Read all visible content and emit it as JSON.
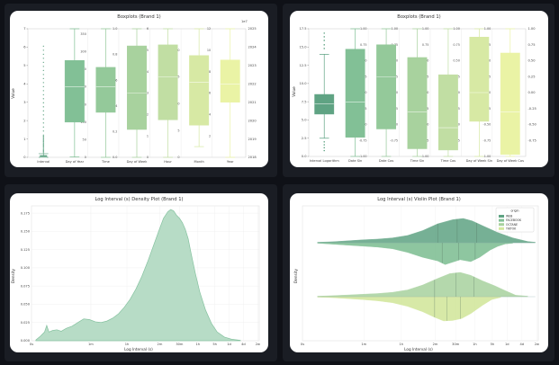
{
  "colors": {
    "page_bg": "#0f1117",
    "panel_bg": "#1a1d24",
    "card_bg": "#ffffff",
    "kde_fill": "#b7dcc6",
    "kde_line": "#86c2a0"
  },
  "chart_data": [
    {
      "id": "box1",
      "type": "box",
      "title": "Boxplots (Brand 1)",
      "ylabel": "Value",
      "left_axis": {
        "ylim": [
          0,
          7
        ],
        "ticks": [
          0,
          1,
          2,
          3,
          4,
          5,
          6,
          7
        ]
      },
      "exponent_label": "1e7",
      "right_axis": {
        "ylim": [
          2018,
          2025
        ],
        "ticks": [
          2018,
          2019,
          2020,
          2021,
          2022,
          2023,
          2024,
          2025
        ]
      },
      "categories": [
        "Interval",
        "Day of Year",
        "Time",
        "Day of Week",
        "Hour",
        "Month",
        "Year"
      ],
      "colors": [
        "#5fa383",
        "#82c096",
        "#94c99a",
        "#a8d29e",
        "#c1dea3",
        "#d7e9a4",
        "#eaf3a5"
      ],
      "boxes": [
        {
          "whisker_lo": 0,
          "q1": 0,
          "median": 0,
          "q3": 0.1,
          "whisker_hi": 0.2
        },
        {
          "whisker_lo": 1,
          "q1": 100,
          "median": 200,
          "q3": 275,
          "whisker_hi": 365
        },
        {
          "whisker_lo": 0,
          "q1": 0.35,
          "median": 0.55,
          "q3": 0.7,
          "whisker_hi": 1.0
        },
        {
          "whisker_lo": 0,
          "q1": 1.3,
          "median": 3.0,
          "q3": 5.2,
          "whisker_hi": 6.0
        },
        {
          "whisker_lo": 0,
          "q1": 7,
          "median": 15,
          "q3": 21,
          "whisker_hi": 24
        },
        {
          "whisker_lo": 1,
          "q1": 3,
          "median": 7,
          "q3": 9.5,
          "whisker_hi": 12
        },
        {
          "whisker_lo": 2018,
          "q1": 2021,
          "median": 2022,
          "q3": 2023.3,
          "whisker_hi": 2025
        }
      ],
      "inner_axes": [
        {
          "ticks": [
            0,
            50,
            100,
            150,
            200,
            250,
            300,
            350
          ],
          "lim": [
            0,
            365
          ]
        },
        {
          "ticks": [
            "0.0",
            "0.2",
            "0.4",
            "0.6",
            "0.8",
            "1.0"
          ],
          "lim": [
            0,
            1
          ]
        },
        {
          "ticks": [
            0,
            1,
            2,
            3,
            4,
            5,
            6
          ],
          "lim": [
            0,
            6
          ]
        },
        {
          "ticks": [
            0,
            5,
            10,
            15,
            20
          ],
          "lim": [
            0,
            24
          ]
        },
        {
          "ticks": [
            2,
            4,
            6,
            8,
            10,
            12
          ],
          "lim": [
            0,
            12
          ]
        }
      ]
    },
    {
      "id": "box2",
      "type": "box",
      "title": "Boxplots (Brand 1)",
      "ylabel": "Value",
      "left_axis": {
        "ylim": [
          0,
          17.5
        ],
        "ticks": [
          "0.0",
          "2.5",
          "5.0",
          "7.5",
          "10.0",
          "12.5",
          "15.0",
          "17.5"
        ]
      },
      "right_axis": {
        "ylim": [
          -1,
          1
        ],
        "ticks": [
          "-0.75",
          "-0.50",
          "-0.25",
          "0.00",
          "0.25",
          "0.50",
          "0.75",
          "1.00"
        ]
      },
      "categories": [
        "Interval Logarithm",
        "Date Sin",
        "Date Cos",
        "Time Sin",
        "Time Cos",
        "Day of Week Sin",
        "Day of Week Cos"
      ],
      "colors": [
        "#5fa383",
        "#82c096",
        "#94c99a",
        "#a8d29e",
        "#c1dea3",
        "#d7e9a4",
        "#eaf3a5"
      ],
      "boxes": [
        {
          "whisker_lo": 2.5,
          "q1": 5.8,
          "median": 7.2,
          "q3": 8.5,
          "whisker_hi": 14
        },
        {
          "whisker_lo": -1,
          "q1": -0.7,
          "median": -0.15,
          "q3": 0.68,
          "whisker_hi": 1
        },
        {
          "whisker_lo": -1,
          "q1": -0.57,
          "median": 0.25,
          "q3": 0.75,
          "whisker_hi": 1
        },
        {
          "whisker_lo": -1,
          "q1": -0.88,
          "median": -0.3,
          "q3": 0.55,
          "whisker_hi": 1
        },
        {
          "whisker_lo": -1,
          "q1": -0.9,
          "median": -0.55,
          "q3": 0.28,
          "whisker_hi": 1
        },
        {
          "whisker_lo": -1,
          "q1": -0.45,
          "median": 0.0,
          "q3": 0.87,
          "whisker_hi": 1
        },
        {
          "whisker_lo": -1,
          "q1": -0.97,
          "median": -0.3,
          "q3": 0.62,
          "whisker_hi": 1
        }
      ],
      "inner_axes": [
        {
          "ticks": [
            "-1.00",
            "-0.75",
            "-0.50",
            "-0.25",
            "0.00",
            "0.25",
            "0.50",
            "0.75",
            "1.00"
          ],
          "lim": [
            -1,
            1
          ]
        },
        {
          "ticks": [
            "-0.75",
            "-0.50",
            "-0.25",
            "0.00",
            "0.25",
            "0.50",
            "0.75",
            "1.00"
          ],
          "lim": [
            -1,
            1
          ]
        },
        {
          "ticks": [
            "-1.00",
            "-0.75",
            "-0.50",
            "-0.25",
            "0.00",
            "0.25",
            "0.50",
            "0.75",
            "1.00"
          ],
          "lim": [
            -1,
            1
          ]
        },
        {
          "ticks": [
            "-0.75",
            "-0.50",
            "-0.25",
            "0.00",
            "0.25",
            "0.50",
            "0.75",
            "1.00"
          ],
          "lim": [
            -1,
            1
          ]
        },
        {
          "ticks": [
            "-1.00",
            "-0.75",
            "-0.50",
            "-0.25",
            "0.00",
            "0.25",
            "0.50",
            "0.75",
            "1.00"
          ],
          "lim": [
            -1,
            1
          ]
        }
      ]
    },
    {
      "id": "kde",
      "type": "area",
      "title": "Log Interval (s) Density Plot (Brand 1)",
      "xlabel": "Log Interval (s)",
      "ylabel": "Density",
      "xlim": [
        0,
        15.7
      ],
      "ylim": [
        0,
        0.185
      ],
      "x_ticks": [
        {
          "v": 0,
          "l": "0s"
        },
        {
          "v": 4.09,
          "l": "1m"
        },
        {
          "v": 6.58,
          "l": "1h"
        },
        {
          "v": 8.84,
          "l": "2m"
        },
        {
          "v": 10.2,
          "l": "30m"
        },
        {
          "v": 11.47,
          "l": "1h"
        },
        {
          "v": 12.64,
          "l": "5h"
        },
        {
          "v": 13.62,
          "l": "1d"
        },
        {
          "v": 14.61,
          "l": "4d"
        },
        {
          "v": 15.6,
          "l": "2w"
        }
      ],
      "y_ticks": [
        0.0,
        0.025,
        0.05,
        0.075,
        0.1,
        0.125,
        0.15,
        0.175
      ],
      "y_tick_labels": [
        "0.000",
        "0.025",
        "0.050",
        "0.075",
        "0.100",
        "0.125",
        "0.150",
        "0.175"
      ],
      "curve": [
        [
          0.3,
          0.001
        ],
        [
          0.6,
          0.006
        ],
        [
          0.9,
          0.012
        ],
        [
          1.05,
          0.021
        ],
        [
          1.2,
          0.012
        ],
        [
          1.45,
          0.014
        ],
        [
          1.75,
          0.015
        ],
        [
          2.05,
          0.013
        ],
        [
          2.4,
          0.017
        ],
        [
          2.8,
          0.02
        ],
        [
          3.2,
          0.025
        ],
        [
          3.6,
          0.03
        ],
        [
          4.0,
          0.029
        ],
        [
          4.4,
          0.026
        ],
        [
          4.8,
          0.025
        ],
        [
          5.2,
          0.027
        ],
        [
          5.6,
          0.031
        ],
        [
          6.0,
          0.037
        ],
        [
          6.4,
          0.046
        ],
        [
          6.8,
          0.057
        ],
        [
          7.2,
          0.071
        ],
        [
          7.6,
          0.088
        ],
        [
          8.0,
          0.108
        ],
        [
          8.4,
          0.13
        ],
        [
          8.8,
          0.152
        ],
        [
          9.1,
          0.168
        ],
        [
          9.4,
          0.177
        ],
        [
          9.6,
          0.18
        ],
        [
          9.8,
          0.178
        ],
        [
          10.0,
          0.172
        ],
        [
          10.2,
          0.168
        ],
        [
          10.4,
          0.162
        ],
        [
          10.6,
          0.153
        ],
        [
          10.8,
          0.14
        ],
        [
          11.0,
          0.12
        ],
        [
          11.3,
          0.092
        ],
        [
          11.6,
          0.067
        ],
        [
          12.0,
          0.042
        ],
        [
          12.4,
          0.024
        ],
        [
          12.8,
          0.012
        ],
        [
          13.3,
          0.005
        ],
        [
          13.8,
          0.002
        ],
        [
          14.4,
          0.0005
        ]
      ]
    },
    {
      "id": "violin",
      "type": "violin",
      "title": "Log Interval (s) Violin Plot (Brand 1)",
      "xlabel": "Log Interval (s)",
      "ylabel": "Density",
      "xlim": [
        0,
        15.7
      ],
      "x_ticks": [
        {
          "v": 0,
          "l": "0s"
        },
        {
          "v": 4.09,
          "l": "1m"
        },
        {
          "v": 6.58,
          "l": "1h"
        },
        {
          "v": 8.84,
          "l": "2m"
        },
        {
          "v": 10.2,
          "l": "30m"
        },
        {
          "v": 11.47,
          "l": "1h"
        },
        {
          "v": 12.64,
          "l": "5h"
        },
        {
          "v": 13.62,
          "l": "1d"
        },
        {
          "v": 14.61,
          "l": "4d"
        },
        {
          "v": 15.6,
          "l": "2w"
        }
      ],
      "legend": {
        "title": "origin",
        "entries": [
          {
            "name": "WEB",
            "color": "#5fa383"
          },
          {
            "name": "FACEBOOK",
            "color": "#82c096"
          },
          {
            "name": "OCTANE",
            "color": "#a8d29e"
          },
          {
            "name": "TIKTOK",
            "color": "#d3e79e"
          }
        ]
      },
      "violins": [
        {
          "top_color": "#5fa383",
          "bottom_color": "#82c096",
          "top": [
            [
              1,
              0.02
            ],
            [
              2,
              0.04
            ],
            [
              3,
              0.08
            ],
            [
              4,
              0.12
            ],
            [
              5,
              0.15
            ],
            [
              6,
              0.2
            ],
            [
              7,
              0.3
            ],
            [
              8,
              0.5
            ],
            [
              9,
              0.78
            ],
            [
              10,
              0.95
            ],
            [
              10.7,
              1.0
            ],
            [
              11.3,
              0.9
            ],
            [
              12,
              0.7
            ],
            [
              13,
              0.42
            ],
            [
              14,
              0.2
            ],
            [
              15,
              0.05
            ],
            [
              15.5,
              0.02
            ]
          ],
          "bottom": [
            [
              1,
              0.02
            ],
            [
              2,
              0.06
            ],
            [
              3,
              0.1
            ],
            [
              4,
              0.14
            ],
            [
              5,
              0.18
            ],
            [
              6,
              0.25
            ],
            [
              7,
              0.4
            ],
            [
              8,
              0.6
            ],
            [
              9,
              0.75
            ],
            [
              9.5,
              0.9
            ],
            [
              10,
              0.8
            ],
            [
              10.5,
              0.7
            ],
            [
              11.2,
              0.78
            ],
            [
              11.8,
              0.6
            ],
            [
              12.5,
              0.3
            ],
            [
              13,
              0.15
            ],
            [
              13.5,
              0.05
            ],
            [
              14,
              0.02
            ]
          ],
          "quartiles_top": [
            9.0,
            10.3,
            11.6
          ],
          "quartiles_bottom": [
            9.3,
            10.4,
            11.5
          ]
        },
        {
          "top_color": "#a8d29e",
          "bottom_color": "#d3e79e",
          "top": [
            [
              1,
              0.02
            ],
            [
              2,
              0.04
            ],
            [
              3,
              0.07
            ],
            [
              4,
              0.1
            ],
            [
              5,
              0.13
            ],
            [
              6,
              0.18
            ],
            [
              7,
              0.28
            ],
            [
              8,
              0.48
            ],
            [
              9,
              0.75
            ],
            [
              9.8,
              0.95
            ],
            [
              10.5,
              1.0
            ],
            [
              11.2,
              0.88
            ],
            [
              12,
              0.65
            ],
            [
              12.8,
              0.45
            ],
            [
              13.5,
              0.25
            ],
            [
              14.2,
              0.06
            ],
            [
              15,
              0.02
            ]
          ],
          "bottom": [
            [
              1,
              0.02
            ],
            [
              2,
              0.04
            ],
            [
              3,
              0.08
            ],
            [
              4,
              0.12
            ],
            [
              5,
              0.17
            ],
            [
              6,
              0.25
            ],
            [
              7,
              0.4
            ],
            [
              8,
              0.62
            ],
            [
              8.8,
              0.85
            ],
            [
              9.4,
              1.0
            ],
            [
              10,
              0.98
            ],
            [
              10.6,
              0.9
            ],
            [
              11.2,
              0.7
            ],
            [
              12,
              0.35
            ],
            [
              12.6,
              0.12
            ],
            [
              13.2,
              0.03
            ]
          ],
          "quartiles_top": [
            8.8,
            10.2,
            11.4
          ],
          "quartiles_bottom": [
            8.8,
            9.6,
            10.5
          ]
        }
      ]
    }
  ]
}
